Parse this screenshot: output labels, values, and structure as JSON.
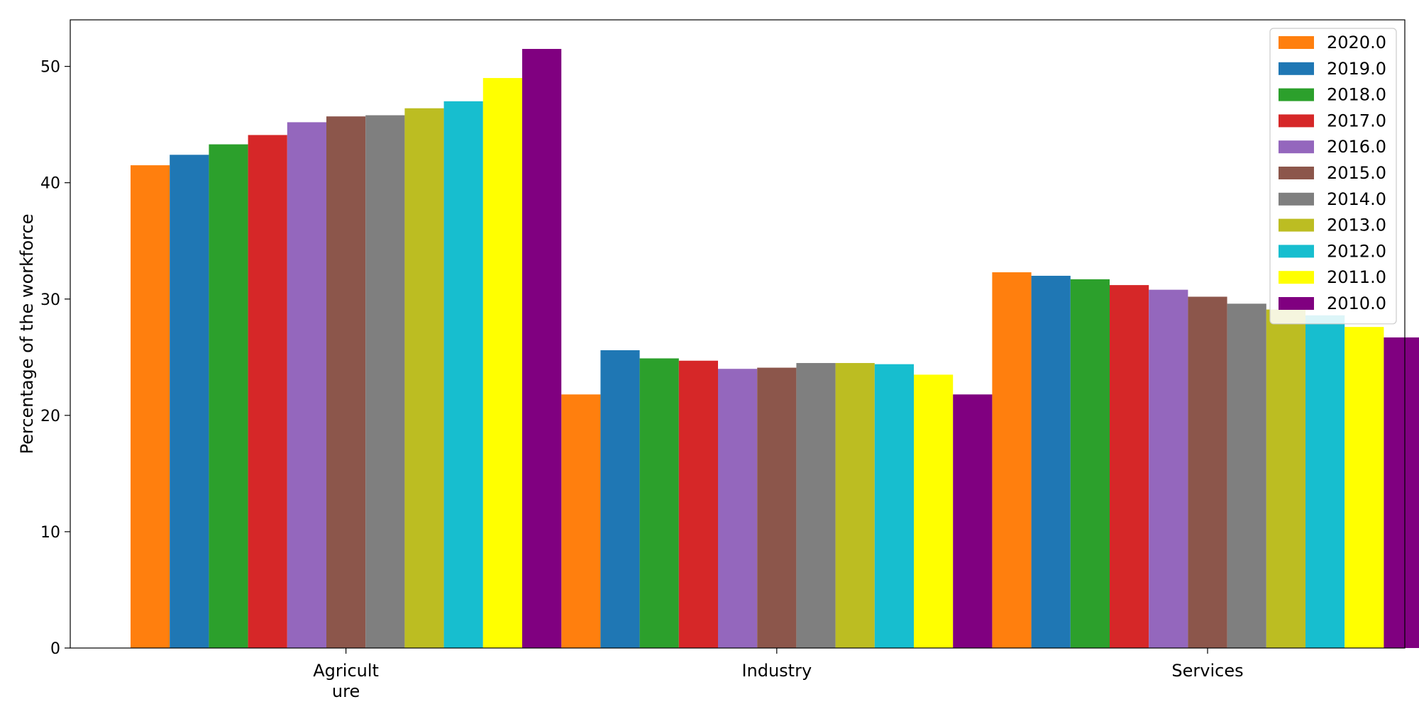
{
  "chart_data": {
    "type": "bar",
    "categories": [
      "Agricult\nure",
      "Industry",
      "Services"
    ],
    "ylabel": "Percentage of the workforce",
    "xlabel": "",
    "ylim": [
      0,
      54
    ],
    "yticks": [
      0,
      10,
      20,
      30,
      40,
      50
    ],
    "legend_position": "top-right",
    "grid": false,
    "series": [
      {
        "name": "2020.0",
        "color": "#ff7f0e",
        "values": [
          41.5,
          21.8,
          32.3
        ]
      },
      {
        "name": "2019.0",
        "color": "#1f77b4",
        "values": [
          42.4,
          25.6,
          32.0
        ]
      },
      {
        "name": "2018.0",
        "color": "#2ca02c",
        "values": [
          43.3,
          24.9,
          31.7
        ]
      },
      {
        "name": "2017.0",
        "color": "#d62728",
        "values": [
          44.1,
          24.7,
          31.2
        ]
      },
      {
        "name": "2016.0",
        "color": "#9467bd",
        "values": [
          45.2,
          24.0,
          30.8
        ]
      },
      {
        "name": "2015.0",
        "color": "#8c564b",
        "values": [
          45.7,
          24.1,
          30.2
        ]
      },
      {
        "name": "2014.0",
        "color": "#7f7f7f",
        "values": [
          45.8,
          24.5,
          29.6
        ]
      },
      {
        "name": "2013.0",
        "color": "#bcbd22",
        "values": [
          46.4,
          24.5,
          29.1
        ]
      },
      {
        "name": "2012.0",
        "color": "#17becf",
        "values": [
          47.0,
          24.4,
          28.6
        ]
      },
      {
        "name": "2011.0",
        "color": "#ffff00",
        "values": [
          49.0,
          23.5,
          27.6
        ]
      },
      {
        "name": "2010.0",
        "color": "#800080",
        "values": [
          51.5,
          21.8,
          26.7
        ]
      }
    ]
  }
}
